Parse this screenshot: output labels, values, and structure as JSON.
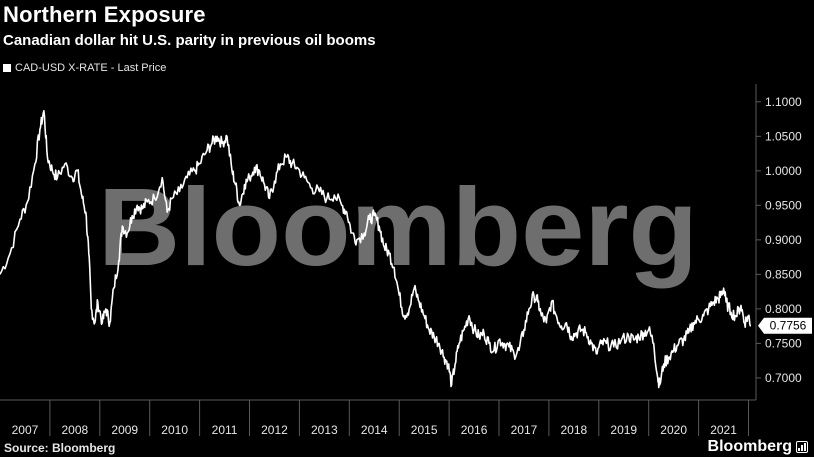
{
  "header": {
    "title": "Northern Exposure",
    "subtitle": "Canadian dollar hit U.S. parity in previous oil booms"
  },
  "legend": {
    "label": "CAD-USD X-RATE - Last Price"
  },
  "footer": {
    "source": "Source: Bloomberg",
    "brand": "Bloomberg"
  },
  "watermark": "Bloomberg",
  "colors": {
    "background": "#000000",
    "line": "#ffffff",
    "grid": "#5a5a5a",
    "watermark": "#6e6e6e"
  },
  "chart_data": {
    "type": "line",
    "title": "Northern Exposure",
    "subtitle": "Canadian dollar hit U.S. parity in previous oil booms",
    "series": [
      {
        "name": "CAD-USD X-RATE - Last Price",
        "last_value_label": "0.7756",
        "points": [
          [
            2007.0,
            0.85
          ],
          [
            2007.2,
            0.88
          ],
          [
            2007.4,
            0.93
          ],
          [
            2007.55,
            0.955
          ],
          [
            2007.7,
            1.01
          ],
          [
            2007.8,
            1.06
          ],
          [
            2007.88,
            1.087
          ],
          [
            2007.95,
            1.02
          ],
          [
            2008.05,
            1.0
          ],
          [
            2008.15,
            0.99
          ],
          [
            2008.3,
            1.01
          ],
          [
            2008.45,
            0.99
          ],
          [
            2008.55,
            1.0
          ],
          [
            2008.65,
            0.96
          ],
          [
            2008.72,
            0.94
          ],
          [
            2008.78,
            0.88
          ],
          [
            2008.83,
            0.8
          ],
          [
            2008.9,
            0.78
          ],
          [
            2008.96,
            0.81
          ],
          [
            2009.05,
            0.78
          ],
          [
            2009.12,
            0.8
          ],
          [
            2009.2,
            0.78
          ],
          [
            2009.28,
            0.83
          ],
          [
            2009.38,
            0.87
          ],
          [
            2009.45,
            0.92
          ],
          [
            2009.55,
            0.91
          ],
          [
            2009.65,
            0.935
          ],
          [
            2009.75,
            0.95
          ],
          [
            2009.85,
            0.945
          ],
          [
            2009.95,
            0.955
          ],
          [
            2010.1,
            0.96
          ],
          [
            2010.25,
            0.99
          ],
          [
            2010.35,
            0.94
          ],
          [
            2010.45,
            0.96
          ],
          [
            2010.6,
            0.97
          ],
          [
            2010.75,
            0.99
          ],
          [
            2010.9,
            1.0
          ],
          [
            2011.0,
            1.01
          ],
          [
            2011.15,
            1.03
          ],
          [
            2011.25,
            1.04
          ],
          [
            2011.35,
            1.05
          ],
          [
            2011.45,
            1.04
          ],
          [
            2011.55,
            1.05
          ],
          [
            2011.65,
            1.0
          ],
          [
            2011.72,
            0.98
          ],
          [
            2011.8,
            0.95
          ],
          [
            2011.9,
            0.98
          ],
          [
            2012.0,
            0.99
          ],
          [
            2012.1,
            1.005
          ],
          [
            2012.2,
            1.0
          ],
          [
            2012.3,
            0.98
          ],
          [
            2012.4,
            0.96
          ],
          [
            2012.5,
            0.985
          ],
          [
            2012.62,
            1.01
          ],
          [
            2012.75,
            1.02
          ],
          [
            2012.85,
            1.01
          ],
          [
            2012.95,
            1.005
          ],
          [
            2013.1,
            0.99
          ],
          [
            2013.25,
            0.975
          ],
          [
            2013.4,
            0.97
          ],
          [
            2013.55,
            0.96
          ],
          [
            2013.7,
            0.965
          ],
          [
            2013.85,
            0.95
          ],
          [
            2013.95,
            0.94
          ],
          [
            2014.05,
            0.91
          ],
          [
            2014.15,
            0.9
          ],
          [
            2014.3,
            0.91
          ],
          [
            2014.4,
            0.93
          ],
          [
            2014.5,
            0.935
          ],
          [
            2014.6,
            0.92
          ],
          [
            2014.7,
            0.89
          ],
          [
            2014.8,
            0.88
          ],
          [
            2014.9,
            0.86
          ],
          [
            2015.0,
            0.82
          ],
          [
            2015.1,
            0.79
          ],
          [
            2015.2,
            0.8
          ],
          [
            2015.3,
            0.83
          ],
          [
            2015.4,
            0.81
          ],
          [
            2015.5,
            0.79
          ],
          [
            2015.6,
            0.77
          ],
          [
            2015.7,
            0.76
          ],
          [
            2015.8,
            0.75
          ],
          [
            2015.9,
            0.73
          ],
          [
            2015.98,
            0.72
          ],
          [
            2016.05,
            0.69
          ],
          [
            2016.12,
            0.72
          ],
          [
            2016.2,
            0.75
          ],
          [
            2016.3,
            0.77
          ],
          [
            2016.4,
            0.79
          ],
          [
            2016.5,
            0.77
          ],
          [
            2016.6,
            0.76
          ],
          [
            2016.7,
            0.765
          ],
          [
            2016.8,
            0.75
          ],
          [
            2016.9,
            0.74
          ],
          [
            2017.0,
            0.755
          ],
          [
            2017.1,
            0.75
          ],
          [
            2017.2,
            0.745
          ],
          [
            2017.3,
            0.735
          ],
          [
            2017.4,
            0.74
          ],
          [
            2017.5,
            0.77
          ],
          [
            2017.6,
            0.8
          ],
          [
            2017.7,
            0.82
          ],
          [
            2017.78,
            0.81
          ],
          [
            2017.85,
            0.79
          ],
          [
            2017.95,
            0.78
          ],
          [
            2018.05,
            0.81
          ],
          [
            2018.15,
            0.79
          ],
          [
            2018.25,
            0.775
          ],
          [
            2018.35,
            0.78
          ],
          [
            2018.45,
            0.76
          ],
          [
            2018.55,
            0.765
          ],
          [
            2018.65,
            0.77
          ],
          [
            2018.75,
            0.765
          ],
          [
            2018.85,
            0.75
          ],
          [
            2018.95,
            0.735
          ],
          [
            2019.05,
            0.75
          ],
          [
            2019.15,
            0.75
          ],
          [
            2019.3,
            0.745
          ],
          [
            2019.45,
            0.755
          ],
          [
            2019.6,
            0.76
          ],
          [
            2019.7,
            0.755
          ],
          [
            2019.8,
            0.76
          ],
          [
            2019.9,
            0.765
          ],
          [
            2020.0,
            0.77
          ],
          [
            2020.1,
            0.75
          ],
          [
            2020.18,
            0.7
          ],
          [
            2020.22,
            0.69
          ],
          [
            2020.3,
            0.72
          ],
          [
            2020.4,
            0.73
          ],
          [
            2020.5,
            0.74
          ],
          [
            2020.6,
            0.75
          ],
          [
            2020.7,
            0.755
          ],
          [
            2020.8,
            0.765
          ],
          [
            2020.9,
            0.78
          ],
          [
            2021.0,
            0.785
          ],
          [
            2021.1,
            0.79
          ],
          [
            2021.2,
            0.8
          ],
          [
            2021.3,
            0.81
          ],
          [
            2021.4,
            0.815
          ],
          [
            2021.45,
            0.82
          ],
          [
            2021.5,
            0.83
          ],
          [
            2021.55,
            0.81
          ],
          [
            2021.65,
            0.795
          ],
          [
            2021.75,
            0.79
          ],
          [
            2021.85,
            0.805
          ],
          [
            2021.92,
            0.78
          ],
          [
            2022.0,
            0.79
          ],
          [
            2022.05,
            0.7756
          ]
        ]
      }
    ],
    "x_tick_labels": [
      "2007",
      "2008",
      "2009",
      "2010",
      "2011",
      "2012",
      "2013",
      "2014",
      "2015",
      "2016",
      "2017",
      "2018",
      "2019",
      "2020",
      "2021"
    ],
    "y_tick_labels": [
      "1.1000",
      "1.0500",
      "1.0000",
      "0.9500",
      "0.9000",
      "0.8500",
      "0.8000",
      "0.7500",
      "0.7000"
    ],
    "y_ticks": [
      1.1,
      1.05,
      1.0,
      0.95,
      0.9,
      0.85,
      0.8,
      0.75,
      0.7
    ],
    "xlim": [
      2007.0,
      2022.15
    ],
    "ylim": [
      0.668,
      1.12
    ],
    "grid": false,
    "legend_position": "top-left"
  }
}
